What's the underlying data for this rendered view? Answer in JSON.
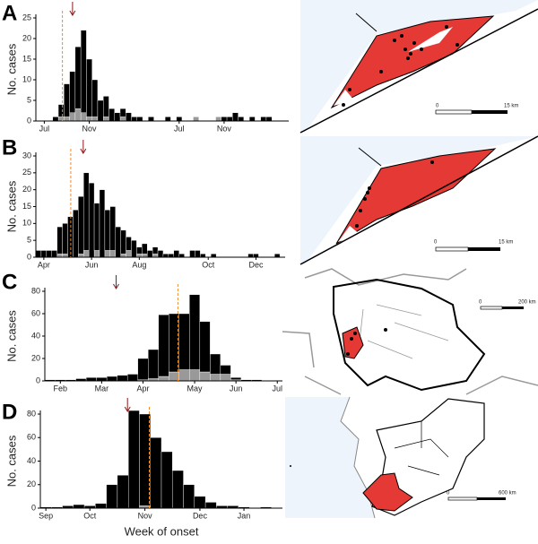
{
  "chart_data": [
    {
      "type": "bar",
      "stacked": true,
      "label": "A",
      "ylabel": "No. cases",
      "categories": [
        null,
        "Jul",
        null,
        null,
        null,
        null,
        null,
        null,
        null,
        "Nov",
        null,
        null,
        null,
        null,
        null,
        null,
        null,
        null,
        null,
        null,
        null,
        null,
        null,
        null,
        null,
        "Jul",
        null,
        null,
        null,
        null,
        null,
        null,
        null,
        "Nov",
        null,
        null,
        null,
        null,
        null,
        null,
        null,
        null,
        null,
        null,
        null
      ],
      "series": [
        {
          "color": "#999999",
          "values": [
            0,
            0,
            0,
            0,
            1,
            1,
            2,
            3,
            2,
            1,
            1,
            0,
            1,
            0,
            0,
            1,
            0,
            0,
            0,
            0,
            0,
            0,
            0,
            0,
            0,
            0,
            0,
            0,
            1,
            0,
            0,
            0,
            1,
            0,
            0,
            0,
            0,
            0,
            0,
            0,
            0,
            0,
            0,
            0,
            0
          ]
        },
        {
          "color": "#000000",
          "values": [
            0,
            0,
            0,
            1,
            3,
            8,
            10,
            15,
            20,
            14,
            9,
            5,
            5,
            3,
            2,
            2,
            2,
            1,
            1,
            0,
            1,
            0,
            0,
            1,
            0,
            1,
            0,
            0,
            0,
            0,
            0,
            0,
            0,
            1,
            1,
            2,
            1,
            0,
            1,
            0,
            1,
            1,
            0,
            0,
            0
          ]
        }
      ],
      "ylim": [
        0,
        25
      ],
      "yticks": [
        0,
        5,
        10,
        15,
        20,
        25
      ]
    },
    {
      "type": "bar",
      "stacked": true,
      "label": "B",
      "ylabel": "No. cases",
      "categories": [
        null,
        "Apr",
        null,
        null,
        null,
        null,
        null,
        null,
        null,
        null,
        "Jun",
        null,
        null,
        null,
        null,
        null,
        null,
        null,
        null,
        "Aug",
        null,
        null,
        null,
        null,
        null,
        null,
        null,
        null,
        null,
        null,
        null,
        null,
        "Oct",
        null,
        null,
        null,
        null,
        null,
        null,
        null,
        null,
        "Dec",
        null,
        null,
        null,
        null,
        null
      ],
      "series": [
        {
          "color": "#999999",
          "values": [
            0,
            0,
            0,
            0,
            1,
            1,
            0,
            0,
            1,
            2,
            0,
            2,
            0,
            2,
            2,
            0,
            1,
            2,
            0,
            1,
            1,
            0,
            1,
            0,
            0,
            0,
            0,
            0,
            0,
            0,
            0,
            0,
            0,
            0,
            0,
            0,
            0,
            0,
            0,
            0,
            0,
            0,
            0,
            0,
            0,
            0,
            0
          ]
        },
        {
          "color": "#000000",
          "values": [
            2,
            2,
            2,
            2,
            8,
            9,
            12,
            14,
            17,
            23,
            22,
            14,
            20,
            12,
            13,
            9,
            7,
            4,
            5,
            2,
            3,
            2,
            2,
            2,
            1,
            1,
            2,
            1,
            0,
            2,
            2,
            1,
            0,
            1,
            0,
            0,
            0,
            0,
            0,
            0,
            1,
            1,
            0,
            0,
            0,
            1,
            0
          ]
        }
      ],
      "ylim": [
        0,
        30
      ],
      "yticks": [
        0,
        5,
        10,
        15,
        20,
        25,
        30
      ]
    },
    {
      "type": "bar",
      "stacked": true,
      "label": "C",
      "ylabel": "No. cases",
      "categories": [
        null,
        "Feb",
        null,
        null,
        null,
        "Mar",
        null,
        null,
        null,
        "Apr",
        null,
        null,
        null,
        null,
        "May",
        null,
        null,
        null,
        "Jun",
        null,
        null,
        null,
        "Jul"
      ],
      "series": [
        {
          "color": "#999999",
          "values": [
            0,
            0,
            0,
            0,
            0,
            0,
            0,
            0,
            0,
            1,
            2,
            4,
            8,
            10,
            10,
            8,
            6,
            6,
            1,
            0,
            0,
            0,
            0
          ]
        },
        {
          "color": "#000000",
          "values": [
            1,
            1,
            1,
            2,
            3,
            3,
            4,
            5,
            6,
            19,
            26,
            55,
            52,
            50,
            67,
            45,
            18,
            8,
            2,
            1,
            1,
            0,
            0
          ]
        }
      ],
      "ylim": [
        0,
        80
      ],
      "yticks": [
        0,
        20,
        40,
        60,
        80
      ]
    },
    {
      "type": "bar",
      "stacked": true,
      "label": "D",
      "ylabel": "No. cases",
      "xlabel": "Week of onset",
      "categories": [
        "Sep",
        null,
        null,
        null,
        "Oct",
        null,
        null,
        null,
        null,
        "Nov",
        null,
        null,
        null,
        null,
        "Dec",
        null,
        null,
        null,
        "Jan",
        null,
        null,
        null
      ],
      "series": [
        {
          "color": "#999999",
          "values": [
            0,
            0,
            0,
            0,
            0,
            0,
            0,
            0,
            0,
            2,
            0,
            0,
            0,
            0,
            0,
            0,
            0,
            0,
            0,
            0,
            0,
            0
          ]
        },
        {
          "color": "#000000",
          "values": [
            1,
            1,
            2,
            3,
            2,
            4,
            20,
            28,
            83,
            78,
            60,
            48,
            32,
            20,
            10,
            5,
            2,
            2,
            1,
            0,
            1,
            0
          ]
        }
      ],
      "ylim": [
        0,
        80
      ],
      "yticks": [
        0,
        20,
        40,
        60,
        80
      ]
    }
  ],
  "maps": [
    {
      "scale": [
        "0",
        "15 km"
      ]
    },
    {
      "scale": [
        "0",
        "15 km"
      ]
    },
    {
      "scale": [
        "0",
        "200 km"
      ]
    },
    {
      "scale": [
        "0",
        "600 km"
      ]
    }
  ]
}
